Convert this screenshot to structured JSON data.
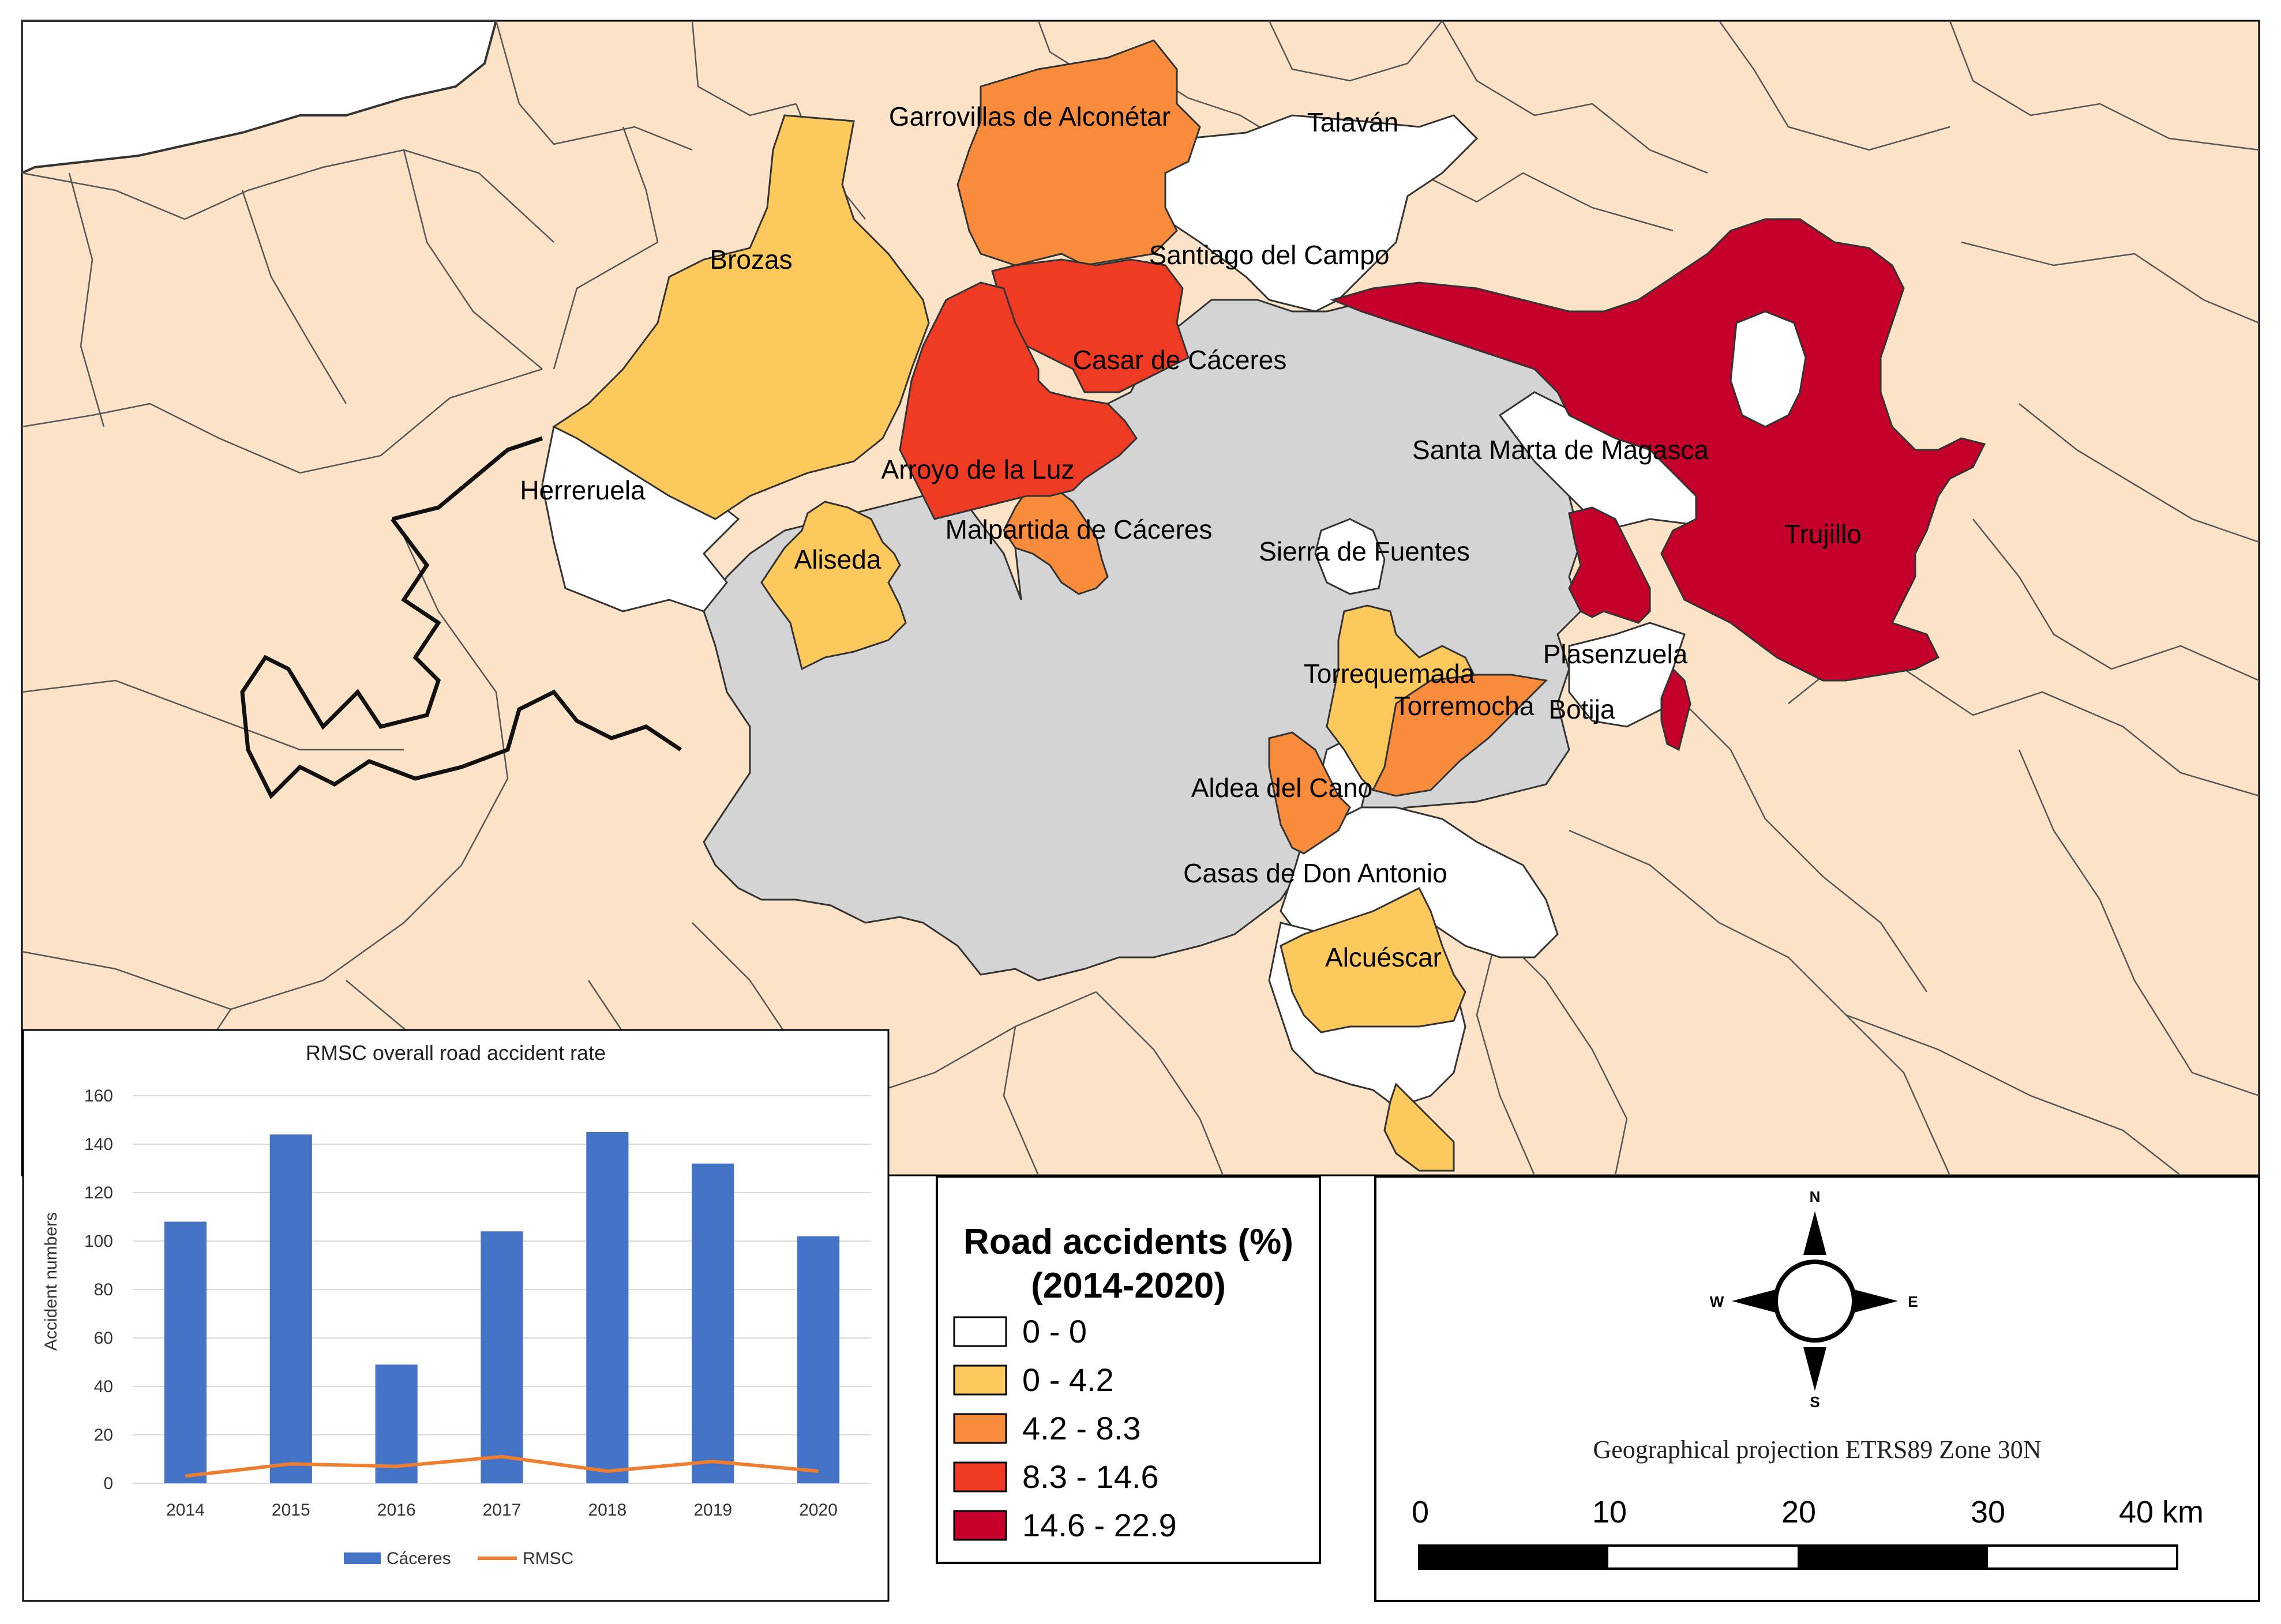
{
  "colors": {
    "background_region": "#fce3c8",
    "study_area": "#d4d4d4",
    "class_0": "#ffffff",
    "class_1": "#fdc85c",
    "class_2": "#f98c3c",
    "class_3": "#ef3a24",
    "class_4": "#c4002b",
    "bar": "#4472c4",
    "line": "#ed7d31"
  },
  "map_labels": [
    {
      "name": "Garrovillas de Alconétar"
    },
    {
      "name": "Talaván"
    },
    {
      "name": "Brozas"
    },
    {
      "name": "Santiago del Campo"
    },
    {
      "name": "Casar de Cáceres"
    },
    {
      "name": "Santa Marta de Magasca"
    },
    {
      "name": "Herreruela"
    },
    {
      "name": "Arroyo de la Luz"
    },
    {
      "name": "Malpartida de Cáceres"
    },
    {
      "name": "Trujillo"
    },
    {
      "name": "Sierra de Fuentes"
    },
    {
      "name": "Aliseda"
    },
    {
      "name": "Plasenzuela"
    },
    {
      "name": "Torrequemada"
    },
    {
      "name": "Torremocha"
    },
    {
      "name": "Botija"
    },
    {
      "name": "Aldea del Cano"
    },
    {
      "name": "Casas de Don Antonio"
    },
    {
      "name": "Alcuéscar"
    }
  ],
  "legend": {
    "title_line1": "Road accidents (%)",
    "title_line2": "(2014-2020)",
    "classes": [
      {
        "label": "0 - 0",
        "color": "#ffffff"
      },
      {
        "label": "0 - 4.2",
        "color": "#fdc85c"
      },
      {
        "label": "4.2 - 8.3",
        "color": "#f98c3c"
      },
      {
        "label": "8.3 - 14.6",
        "color": "#ef3a24"
      },
      {
        "label": "14.6 - 22.9",
        "color": "#c4002b"
      }
    ]
  },
  "north_arrow": {
    "n": "N",
    "s": "S",
    "e": "E",
    "w": "W"
  },
  "projection": "Geographical projection ETRS89 Zone 30N",
  "scale_bar": {
    "labels": [
      "0",
      "10",
      "20",
      "30",
      "40 km"
    ]
  },
  "chart_data": {
    "type": "bar",
    "title": "RMSC overall road accident rate",
    "ylabel": "Accident numbers",
    "xlabel": "",
    "ylim": [
      0,
      160
    ],
    "yticks": [
      0,
      20,
      40,
      60,
      80,
      100,
      120,
      140,
      160
    ],
    "categories": [
      "2014",
      "2015",
      "2016",
      "2017",
      "2018",
      "2019",
      "2020"
    ],
    "series": [
      {
        "name": "Cáceres",
        "type": "bar",
        "color": "#4472c4",
        "values": [
          108,
          144,
          49,
          104,
          145,
          132,
          102
        ]
      },
      {
        "name": "RMSC",
        "type": "line",
        "color": "#ed7d31",
        "values": [
          3,
          8,
          7,
          11,
          5,
          9,
          5
        ]
      }
    ],
    "legend_position": "bottom",
    "grid": true
  }
}
